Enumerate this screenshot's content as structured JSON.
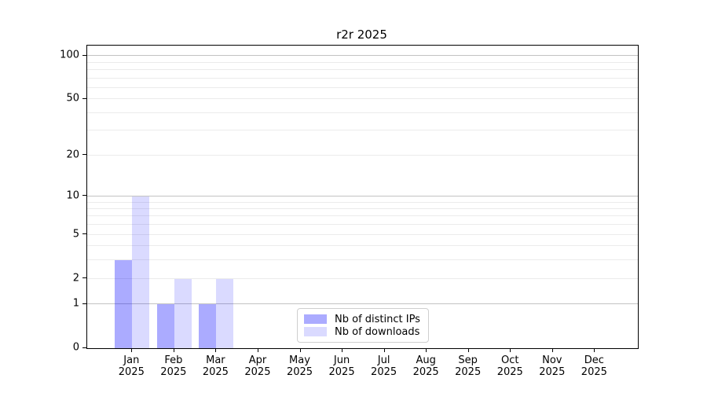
{
  "chart_data": {
    "type": "bar",
    "title": "r2r 2025",
    "categories": [
      "Jan\n2025",
      "Feb\n2025",
      "Mar\n2025",
      "Apr\n2025",
      "May\n2025",
      "Jun\n2025",
      "Jul\n2025",
      "Aug\n2025",
      "Sep\n2025",
      "Oct\n2025",
      "Nov\n2025",
      "Dec\n2025"
    ],
    "series": [
      {
        "name": "Nb of distinct IPs",
        "color": "rgba(0,0,255,0.33)",
        "values": [
          3,
          1,
          1,
          0,
          0,
          0,
          0,
          0,
          0,
          0,
          0,
          0
        ]
      },
      {
        "name": "Nb of downloads",
        "color": "rgba(0,0,255,0.145)",
        "values": [
          10,
          2,
          2,
          0,
          0,
          0,
          0,
          0,
          0,
          0,
          0,
          0
        ]
      }
    ],
    "xlabel": "",
    "ylabel": "",
    "yscale": "log1p",
    "ylim": [
      0,
      118
    ],
    "yticks": [
      0,
      1,
      2,
      5,
      10,
      20,
      50,
      100
    ],
    "gridlines_major": [
      1,
      10,
      100
    ],
    "gridlines_minor": [
      2,
      3,
      4,
      5,
      6,
      7,
      8,
      9,
      20,
      30,
      40,
      50,
      60,
      70,
      80,
      90
    ],
    "grid": "on",
    "legend_position": "lower center",
    "colors": {
      "bar_distinct_ips": "rgba(0,0,255,0.33)",
      "bar_downloads": "rgba(0,0,255,0.145)",
      "gridline_major": "#c3c3c3",
      "gridline_minor": "#ebebeb",
      "axis": "#000000"
    }
  }
}
